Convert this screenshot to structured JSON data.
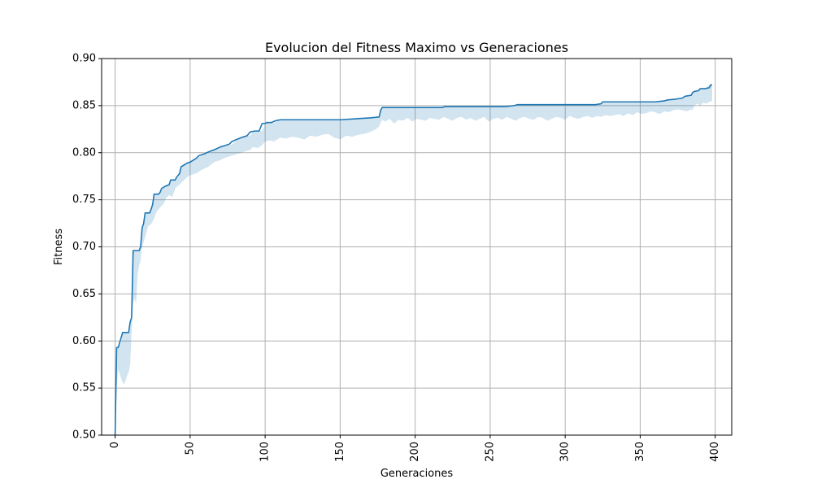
{
  "chart_data": {
    "type": "line",
    "title": "Evolucion del Fitness Maximo vs Generaciones",
    "xlabel": "Generaciones",
    "ylabel": "Fitness",
    "xlim": [
      -9,
      411
    ],
    "ylim": [
      0.5,
      0.9
    ],
    "grid": true,
    "xticks": [
      0,
      50,
      100,
      150,
      200,
      250,
      300,
      350,
      400
    ],
    "xtick_labels": [
      "0",
      "50",
      "100",
      "150",
      "200",
      "250",
      "300",
      "350",
      "400"
    ],
    "yticks": [
      0.5,
      0.55,
      0.6,
      0.65,
      0.7,
      0.75,
      0.8,
      0.85,
      0.9
    ],
    "ytick_labels": [
      "0.50",
      "0.55",
      "0.60",
      "0.65",
      "0.70",
      "0.75",
      "0.80",
      "0.85",
      "0.90"
    ],
    "xtick_rotation": 90,
    "colors": {
      "line": "#1f77b4",
      "band": "#1f77b4",
      "grid": "#b0b0b0",
      "axes": "#000000"
    },
    "series": [
      {
        "x": [
          0,
          1,
          2,
          3,
          5,
          6,
          8,
          9,
          10,
          11,
          12,
          16,
          17,
          18,
          19,
          20,
          23,
          24,
          25,
          26,
          29,
          30,
          31,
          33,
          36,
          37,
          40,
          41,
          43,
          44,
          46,
          47,
          48,
          50,
          52,
          54,
          56,
          60,
          61,
          64,
          66,
          70,
          72,
          76,
          78,
          81,
          84,
          86,
          88,
          90,
          93,
          96,
          98,
          100,
          101,
          104,
          107,
          110,
          113,
          150,
          160,
          170,
          176,
          177,
          178,
          200,
          215,
          218,
          220,
          235,
          250,
          260,
          266,
          268,
          280,
          300,
          320,
          324,
          325,
          340,
          360,
          366,
          368,
          374,
          378,
          380,
          384,
          385,
          386,
          389,
          390,
          393,
          396,
          397,
          398
        ],
        "y": [
          0.5,
          0.593,
          0.593,
          0.598,
          0.609,
          0.609,
          0.609,
          0.609,
          0.62,
          0.625,
          0.696,
          0.696,
          0.7,
          0.72,
          0.725,
          0.736,
          0.736,
          0.74,
          0.745,
          0.756,
          0.756,
          0.758,
          0.762,
          0.764,
          0.766,
          0.771,
          0.771,
          0.774,
          0.778,
          0.785,
          0.787,
          0.788,
          0.789,
          0.79,
          0.792,
          0.794,
          0.797,
          0.799,
          0.8,
          0.802,
          0.803,
          0.806,
          0.807,
          0.809,
          0.812,
          0.814,
          0.816,
          0.817,
          0.818,
          0.822,
          0.823,
          0.823,
          0.831,
          0.831,
          0.832,
          0.832,
          0.834,
          0.835,
          0.835,
          0.835,
          0.836,
          0.837,
          0.838,
          0.845,
          0.848,
          0.848,
          0.848,
          0.848,
          0.849,
          0.849,
          0.849,
          0.849,
          0.85,
          0.851,
          0.851,
          0.851,
          0.851,
          0.852,
          0.854,
          0.854,
          0.854,
          0.855,
          0.856,
          0.857,
          0.858,
          0.86,
          0.861,
          0.864,
          0.865,
          0.866,
          0.868,
          0.868,
          0.869,
          0.872,
          0.872
        ]
      }
    ],
    "band": {
      "x": [
        0,
        1,
        2,
        4,
        5,
        6,
        7,
        8,
        9,
        10,
        11,
        12,
        13,
        14,
        15,
        16,
        17,
        18,
        19,
        20,
        22,
        24,
        25,
        26,
        27,
        28,
        29,
        30,
        32,
        33,
        34,
        36,
        38,
        39,
        40,
        42,
        43,
        44,
        46,
        48,
        50,
        54,
        58,
        62,
        66,
        70,
        74,
        78,
        82,
        86,
        90,
        92,
        95,
        98,
        100,
        103,
        106,
        110,
        114,
        118,
        122,
        126,
        130,
        134,
        138,
        142,
        146,
        150,
        154,
        158,
        162,
        166,
        170,
        174,
        176,
        177,
        178,
        180,
        183,
        186,
        189,
        192,
        195,
        198,
        201,
        204,
        207,
        210,
        213,
        216,
        219,
        222,
        225,
        228,
        231,
        234,
        237,
        240,
        243,
        246,
        249,
        252,
        255,
        258,
        261,
        264,
        267,
        270,
        273,
        276,
        279,
        282,
        285,
        288,
        291,
        294,
        297,
        300,
        303,
        306,
        309,
        312,
        315,
        318,
        321,
        324,
        327,
        330,
        333,
        336,
        339,
        342,
        345,
        348,
        351,
        354,
        357,
        360,
        363,
        366,
        369,
        372,
        375,
        378,
        381,
        384,
        385,
        386,
        388,
        390,
        392,
        394,
        396,
        398
      ],
      "lower": [
        0.5,
        0.55,
        0.57,
        0.56,
        0.556,
        0.554,
        0.558,
        0.563,
        0.567,
        0.575,
        0.61,
        0.64,
        0.645,
        0.64,
        0.67,
        0.68,
        0.686,
        0.7,
        0.705,
        0.71,
        0.722,
        0.724,
        0.727,
        0.73,
        0.735,
        0.738,
        0.74,
        0.742,
        0.745,
        0.748,
        0.752,
        0.755,
        0.753,
        0.757,
        0.762,
        0.765,
        0.766,
        0.768,
        0.771,
        0.774,
        0.776,
        0.778,
        0.782,
        0.785,
        0.79,
        0.792,
        0.795,
        0.797,
        0.799,
        0.801,
        0.803,
        0.806,
        0.805,
        0.808,
        0.812,
        0.813,
        0.812,
        0.816,
        0.815,
        0.817,
        0.816,
        0.814,
        0.818,
        0.817,
        0.819,
        0.82,
        0.816,
        0.814,
        0.818,
        0.817,
        0.819,
        0.82,
        0.822,
        0.825,
        0.828,
        0.832,
        0.835,
        0.833,
        0.836,
        0.831,
        0.835,
        0.834,
        0.837,
        0.833,
        0.836,
        0.835,
        0.834,
        0.837,
        0.836,
        0.835,
        0.838,
        0.836,
        0.834,
        0.837,
        0.838,
        0.835,
        0.837,
        0.834,
        0.836,
        0.838,
        0.833,
        0.836,
        0.837,
        0.835,
        0.838,
        0.836,
        0.834,
        0.837,
        0.838,
        0.836,
        0.835,
        0.838,
        0.837,
        0.834,
        0.836,
        0.838,
        0.837,
        0.835,
        0.839,
        0.837,
        0.836,
        0.838,
        0.839,
        0.837,
        0.839,
        0.838,
        0.84,
        0.839,
        0.84,
        0.841,
        0.839,
        0.842,
        0.84,
        0.843,
        0.841,
        0.842,
        0.844,
        0.843,
        0.841,
        0.844,
        0.843,
        0.845,
        0.846,
        0.845,
        0.844,
        0.846,
        0.845,
        0.85,
        0.852,
        0.85,
        0.853,
        0.852,
        0.854,
        0.855
      ],
      "upper": [
        0.5,
        0.593,
        0.593,
        0.598,
        0.609,
        0.609,
        0.609,
        0.609,
        0.609,
        0.62,
        0.625,
        0.696,
        0.696,
        0.696,
        0.696,
        0.696,
        0.7,
        0.72,
        0.725,
        0.736,
        0.736,
        0.74,
        0.745,
        0.756,
        0.756,
        0.756,
        0.756,
        0.758,
        0.762,
        0.764,
        0.766,
        0.766,
        0.771,
        0.771,
        0.771,
        0.774,
        0.778,
        0.785,
        0.787,
        0.789,
        0.79,
        0.794,
        0.797,
        0.8,
        0.803,
        0.806,
        0.807,
        0.809,
        0.814,
        0.817,
        0.818,
        0.822,
        0.823,
        0.823,
        0.831,
        0.832,
        0.832,
        0.835,
        0.835,
        0.835,
        0.835,
        0.835,
        0.835,
        0.835,
        0.835,
        0.835,
        0.835,
        0.835,
        0.836,
        0.836,
        0.837,
        0.837,
        0.837,
        0.838,
        0.838,
        0.845,
        0.848,
        0.848,
        0.848,
        0.848,
        0.848,
        0.848,
        0.848,
        0.848,
        0.848,
        0.848,
        0.848,
        0.848,
        0.848,
        0.848,
        0.849,
        0.849,
        0.849,
        0.849,
        0.849,
        0.849,
        0.849,
        0.849,
        0.849,
        0.849,
        0.849,
        0.849,
        0.849,
        0.849,
        0.849,
        0.849,
        0.85,
        0.851,
        0.851,
        0.851,
        0.851,
        0.851,
        0.851,
        0.851,
        0.851,
        0.851,
        0.851,
        0.851,
        0.851,
        0.851,
        0.851,
        0.851,
        0.851,
        0.851,
        0.851,
        0.852,
        0.854,
        0.854,
        0.854,
        0.854,
        0.854,
        0.854,
        0.854,
        0.854,
        0.854,
        0.854,
        0.854,
        0.854,
        0.854,
        0.855,
        0.856,
        0.856,
        0.857,
        0.858,
        0.86,
        0.861,
        0.864,
        0.865,
        0.866,
        0.868,
        0.868,
        0.869,
        0.872,
        0.872
      ]
    }
  }
}
